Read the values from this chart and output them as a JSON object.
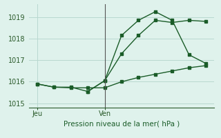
{
  "title": "Pression niveau de la mer( hPa )",
  "bg_color": "#dff2ec",
  "grid_color": "#b8d8d0",
  "line_color": "#1a5c28",
  "ylim": [
    1014.8,
    1019.6
  ],
  "yticks": [
    1015,
    1016,
    1017,
    1018,
    1019
  ],
  "xtick_labels": [
    "Jeu",
    "Ven"
  ],
  "xtick_positions": [
    0,
    4
  ],
  "xlim": [
    -0.5,
    10.5
  ],
  "series1_x": [
    0,
    1,
    2,
    3,
    4,
    5,
    6,
    7,
    8,
    9,
    10
  ],
  "series1_y": [
    1015.9,
    1015.75,
    1015.75,
    1015.55,
    1016.05,
    1017.3,
    1018.15,
    1018.85,
    1018.75,
    1018.85,
    1018.8
  ],
  "series2_x": [
    0,
    1,
    2,
    3,
    4,
    5,
    6,
    7,
    8,
    9,
    10
  ],
  "series2_y": [
    1015.9,
    1015.75,
    1015.72,
    1015.72,
    1015.72,
    1016.0,
    1016.2,
    1016.35,
    1016.5,
    1016.65,
    1016.75
  ],
  "series3_x": [
    3,
    4,
    5,
    6,
    7,
    8,
    9,
    10
  ],
  "series3_y": [
    1015.55,
    1016.05,
    1018.15,
    1018.85,
    1019.25,
    1018.85,
    1017.25,
    1016.85
  ],
  "vline_x": 4
}
